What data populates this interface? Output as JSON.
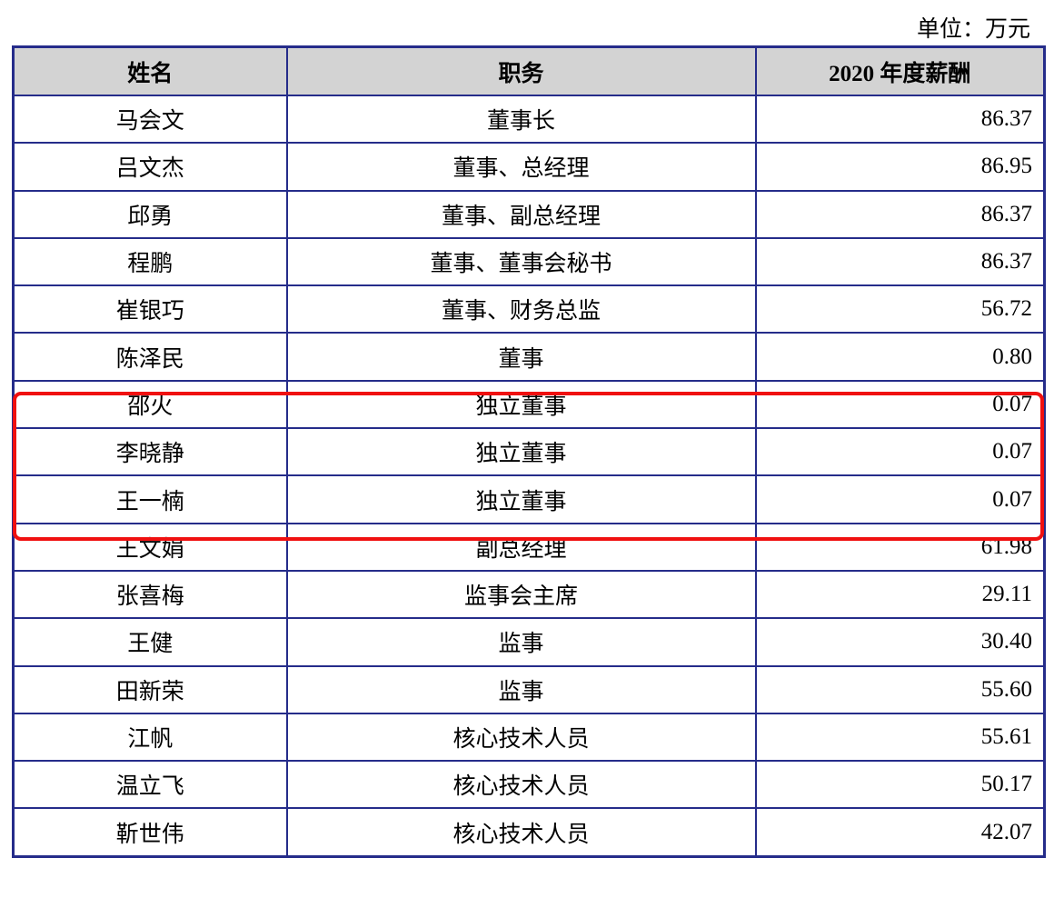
{
  "unit_label": "单位：万元",
  "headers": [
    "姓名",
    "职务",
    "2020 年度薪酬"
  ],
  "rows": [
    {
      "name": "马会文",
      "title": "董事长",
      "salary": "86.37"
    },
    {
      "name": "吕文杰",
      "title": "董事、总经理",
      "salary": "86.95"
    },
    {
      "name": "邱勇",
      "title": "董事、副总经理",
      "salary": "86.37"
    },
    {
      "name": "程鹏",
      "title": "董事、董事会秘书",
      "salary": "86.37"
    },
    {
      "name": "崔银巧",
      "title": "董事、财务总监",
      "salary": "56.72"
    },
    {
      "name": "陈泽民",
      "title": "董事",
      "salary": "0.80"
    },
    {
      "name": "邵火",
      "title": "独立董事",
      "salary": "0.07"
    },
    {
      "name": "李晓静",
      "title": "独立董事",
      "salary": "0.07"
    },
    {
      "name": "王一楠",
      "title": "独立董事",
      "salary": "0.07"
    },
    {
      "name": "王文娟",
      "title": "副总经理",
      "salary": "61.98"
    },
    {
      "name": "张喜梅",
      "title": "监事会主席",
      "salary": "29.11"
    },
    {
      "name": "王健",
      "title": "监事",
      "salary": "30.40"
    },
    {
      "name": "田新荣",
      "title": "监事",
      "salary": "55.60"
    },
    {
      "name": "江帆",
      "title": "核心技术人员",
      "salary": "55.61"
    },
    {
      "name": "温立飞",
      "title": "核心技术人员",
      "salary": "50.17"
    },
    {
      "name": "靳世伟",
      "title": "核心技术人员",
      "salary": "42.07"
    }
  ],
  "highlight": {
    "color": "#f01010",
    "rows": [
      "邵火",
      "李晓静",
      "王一楠"
    ]
  },
  "border_color": "#252c8a",
  "header_bg": "#d3d3d3"
}
